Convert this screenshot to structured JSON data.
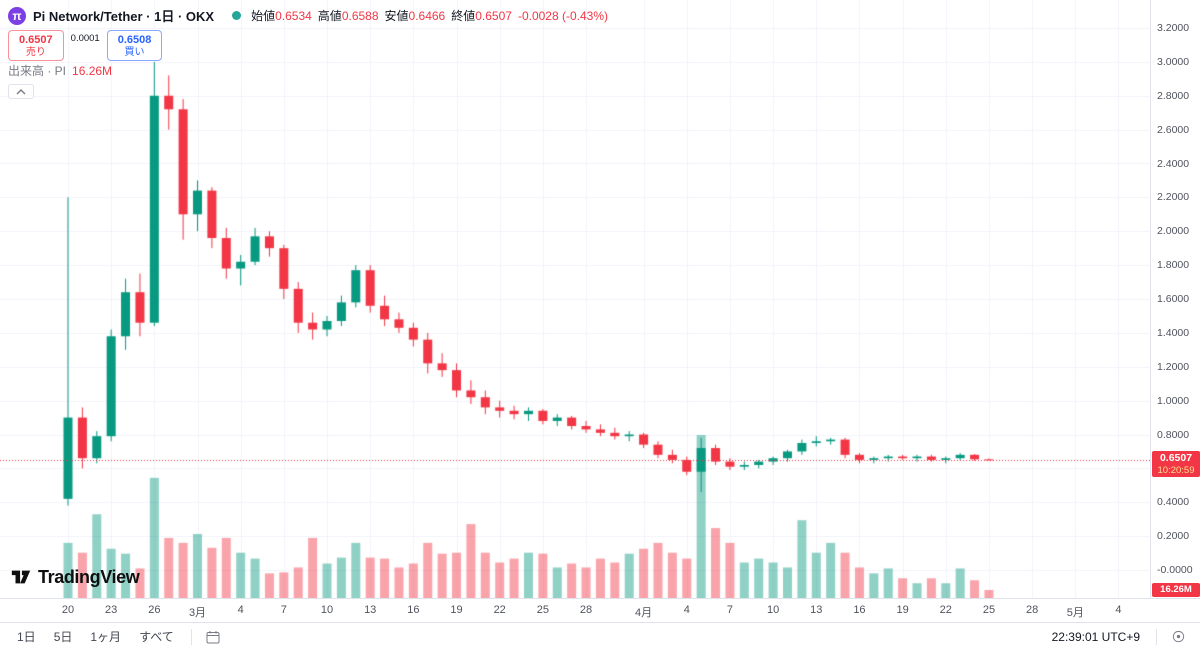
{
  "header": {
    "logo_glyph": "π",
    "title": "Pi Network/Tether · 1日 · OKX",
    "legend": {
      "open_label": "始値",
      "open": "0.6534",
      "high_label": "高値",
      "high": "0.6588",
      "low_label": "安値",
      "low": "0.6466",
      "close_label": "終値",
      "close": "0.6507",
      "change": "-0.0028 (-0.43%)"
    }
  },
  "trade_widget": {
    "sell_price": "0.6507",
    "sell_label": "売り",
    "spread": "0.0001",
    "buy_price": "0.6508",
    "buy_label": "買い"
  },
  "volume_indicator": {
    "label": "出来高 · PI",
    "value": "16.26M"
  },
  "price_axis": {
    "last_price_label": "0.6507",
    "countdown": "10:20:59",
    "volume_badge": "16.26M"
  },
  "footer": {
    "ranges": [
      "1日",
      "5日",
      "1ヶ月",
      "すべて"
    ],
    "clock": "22:39:01 UTC+9"
  },
  "brand": {
    "name": "TradingView"
  },
  "colors": {
    "up": "#089981",
    "down": "#f23645",
    "buy_blue": "#2962ff",
    "badge_red": "#f23645",
    "marker_dot": "#26a69a",
    "grid": "#f0f3fa"
  },
  "chart_data": {
    "type": "candlestick",
    "title": "Pi Network/Tether · 1日 · OKX",
    "symbol": "PI/USDT",
    "exchange": "OKX",
    "interval": "1日",
    "last_price": 0.6507,
    "y_range": [
      -0.17,
      3.37
    ],
    "y_ticks": [
      "3.2000",
      "3.0000",
      "2.8000",
      "2.6000",
      "2.4000",
      "2.2000",
      "2.0000",
      "1.8000",
      "1.6000",
      "1.4000",
      "1.2000",
      "1.0000",
      "0.8000",
      "0.6000",
      "0.4000",
      "0.2000",
      "-0.0000"
    ],
    "x_ticks": [
      {
        "i": 0,
        "label": "20"
      },
      {
        "i": 3,
        "label": "23"
      },
      {
        "i": 6,
        "label": "26"
      },
      {
        "i": 9,
        "label": "3月"
      },
      {
        "i": 12,
        "label": "4"
      },
      {
        "i": 15,
        "label": "7"
      },
      {
        "i": 18,
        "label": "10"
      },
      {
        "i": 21,
        "label": "13"
      },
      {
        "i": 24,
        "label": "16"
      },
      {
        "i": 27,
        "label": "19"
      },
      {
        "i": 30,
        "label": "22"
      },
      {
        "i": 33,
        "label": "25"
      },
      {
        "i": 36,
        "label": "28"
      },
      {
        "i": 40,
        "label": "4月"
      },
      {
        "i": 43,
        "label": "4"
      },
      {
        "i": 46,
        "label": "7"
      },
      {
        "i": 49,
        "label": "10"
      },
      {
        "i": 52,
        "label": "13"
      },
      {
        "i": 55,
        "label": "16"
      },
      {
        "i": 58,
        "label": "19"
      },
      {
        "i": 61,
        "label": "22"
      },
      {
        "i": 64,
        "label": "25"
      },
      {
        "i": 67,
        "label": "28"
      },
      {
        "i": 70,
        "label": "5月"
      },
      {
        "i": 73,
        "label": "4"
      }
    ],
    "dates": [
      "2/20",
      "2/21",
      "2/22",
      "2/23",
      "2/24",
      "2/25",
      "2/26",
      "2/27",
      "2/28",
      "3/1",
      "3/2",
      "3/3",
      "3/4",
      "3/5",
      "3/6",
      "3/7",
      "3/8",
      "3/9",
      "3/10",
      "3/11",
      "3/12",
      "3/13",
      "3/14",
      "3/15",
      "3/16",
      "3/17",
      "3/18",
      "3/19",
      "3/20",
      "3/21",
      "3/22",
      "3/23",
      "3/24",
      "3/25",
      "3/26",
      "3/27",
      "3/28",
      "3/29",
      "3/30",
      "3/31",
      "4/1",
      "4/2",
      "4/3",
      "4/4",
      "4/5",
      "4/6",
      "4/7",
      "4/8",
      "4/9",
      "4/10",
      "4/11",
      "4/12",
      "4/13",
      "4/14",
      "4/15",
      "4/16",
      "4/17",
      "4/18",
      "4/19",
      "4/20",
      "4/21",
      "4/22",
      "4/23",
      "4/24",
      "4/25"
    ],
    "candles": [
      [
        0.42,
        2.2,
        0.38,
        0.9
      ],
      [
        0.9,
        0.96,
        0.6,
        0.66
      ],
      [
        0.66,
        0.82,
        0.63,
        0.79
      ],
      [
        0.79,
        1.42,
        0.76,
        1.38
      ],
      [
        1.38,
        1.72,
        1.3,
        1.64
      ],
      [
        1.64,
        1.75,
        1.38,
        1.46
      ],
      [
        1.46,
        3.0,
        1.44,
        2.8
      ],
      [
        2.8,
        2.92,
        2.6,
        2.72
      ],
      [
        2.72,
        2.78,
        1.95,
        2.1
      ],
      [
        2.1,
        2.3,
        2.0,
        2.24
      ],
      [
        2.24,
        2.26,
        1.9,
        1.96
      ],
      [
        1.96,
        2.02,
        1.72,
        1.78
      ],
      [
        1.78,
        1.86,
        1.68,
        1.82
      ],
      [
        1.82,
        2.02,
        1.8,
        1.97
      ],
      [
        1.97,
        2.0,
        1.85,
        1.9
      ],
      [
        1.9,
        1.92,
        1.6,
        1.66
      ],
      [
        1.66,
        1.7,
        1.4,
        1.46
      ],
      [
        1.46,
        1.52,
        1.36,
        1.42
      ],
      [
        1.42,
        1.5,
        1.38,
        1.47
      ],
      [
        1.47,
        1.62,
        1.44,
        1.58
      ],
      [
        1.58,
        1.8,
        1.55,
        1.77
      ],
      [
        1.77,
        1.8,
        1.52,
        1.56
      ],
      [
        1.56,
        1.62,
        1.44,
        1.48
      ],
      [
        1.48,
        1.52,
        1.4,
        1.43
      ],
      [
        1.43,
        1.46,
        1.32,
        1.36
      ],
      [
        1.36,
        1.4,
        1.16,
        1.22
      ],
      [
        1.22,
        1.28,
        1.14,
        1.18
      ],
      [
        1.18,
        1.22,
        1.02,
        1.06
      ],
      [
        1.06,
        1.12,
        0.98,
        1.02
      ],
      [
        1.02,
        1.06,
        0.92,
        0.96
      ],
      [
        0.96,
        1.0,
        0.9,
        0.94
      ],
      [
        0.94,
        0.97,
        0.89,
        0.92
      ],
      [
        0.92,
        0.96,
        0.88,
        0.94
      ],
      [
        0.94,
        0.95,
        0.86,
        0.88
      ],
      [
        0.88,
        0.92,
        0.85,
        0.9
      ],
      [
        0.9,
        0.91,
        0.83,
        0.85
      ],
      [
        0.85,
        0.88,
        0.81,
        0.83
      ],
      [
        0.83,
        0.86,
        0.79,
        0.81
      ],
      [
        0.81,
        0.84,
        0.77,
        0.79
      ],
      [
        0.79,
        0.82,
        0.76,
        0.8
      ],
      [
        0.8,
        0.81,
        0.72,
        0.74
      ],
      [
        0.74,
        0.76,
        0.66,
        0.68
      ],
      [
        0.68,
        0.71,
        0.63,
        0.65
      ],
      [
        0.65,
        0.67,
        0.56,
        0.58
      ],
      [
        0.58,
        0.78,
        0.46,
        0.72
      ],
      [
        0.72,
        0.74,
        0.62,
        0.64
      ],
      [
        0.64,
        0.66,
        0.59,
        0.61
      ],
      [
        0.61,
        0.64,
        0.59,
        0.62
      ],
      [
        0.62,
        0.65,
        0.6,
        0.64
      ],
      [
        0.64,
        0.67,
        0.62,
        0.66
      ],
      [
        0.66,
        0.71,
        0.64,
        0.7
      ],
      [
        0.7,
        0.77,
        0.68,
        0.75
      ],
      [
        0.75,
        0.79,
        0.73,
        0.76
      ],
      [
        0.76,
        0.78,
        0.74,
        0.77
      ],
      [
        0.77,
        0.78,
        0.66,
        0.68
      ],
      [
        0.68,
        0.69,
        0.63,
        0.65
      ],
      [
        0.65,
        0.67,
        0.63,
        0.66
      ],
      [
        0.66,
        0.68,
        0.64,
        0.67
      ],
      [
        0.67,
        0.68,
        0.65,
        0.66
      ],
      [
        0.66,
        0.68,
        0.64,
        0.67
      ],
      [
        0.67,
        0.68,
        0.64,
        0.65
      ],
      [
        0.65,
        0.67,
        0.63,
        0.66
      ],
      [
        0.66,
        0.69,
        0.65,
        0.68
      ],
      [
        0.68,
        0.685,
        0.645,
        0.6534
      ],
      [
        0.6534,
        0.6588,
        0.6466,
        0.6507
      ]
    ],
    "volumes_m": [
      112,
      92,
      170,
      100,
      90,
      60,
      244,
      122,
      112,
      130,
      102,
      122,
      92,
      80,
      50,
      52,
      62,
      122,
      70,
      82,
      112,
      82,
      80,
      62,
      70,
      112,
      90,
      92,
      150,
      92,
      72,
      80,
      92,
      90,
      62,
      70,
      62,
      80,
      72,
      90,
      100,
      112,
      92,
      80,
      331,
      142,
      112,
      72,
      80,
      72,
      62,
      158,
      92,
      112,
      92,
      62,
      50,
      60,
      40,
      30,
      40,
      30,
      60,
      36,
      16.26
    ],
    "volume_unit": "M PI"
  }
}
